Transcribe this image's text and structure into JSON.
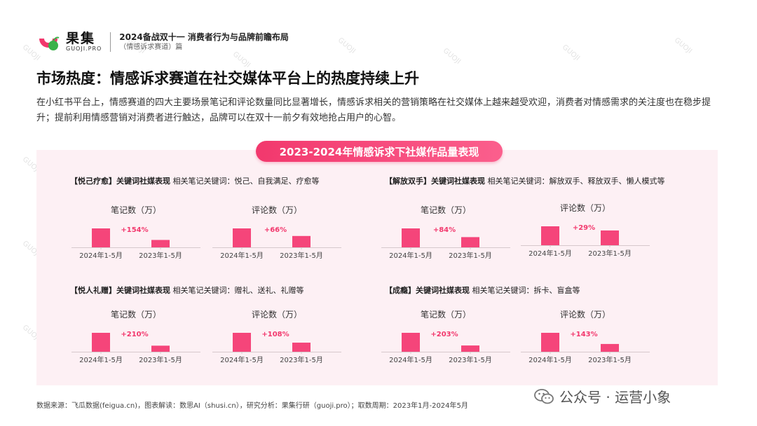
{
  "header": {
    "logo_cn": "果集",
    "logo_en": "GUOJI.PRO",
    "title": "2024备战双十一 消费者行为与品牌前瞻布局",
    "subtitle": "（情感诉求赛道）篇"
  },
  "page_title": "市场热度：情感诉求赛道在社交媒体平台上的热度持续上升",
  "intro": "在小红书平台上，情感赛道的四大主要场景笔记和评论数量同比显著增长，情感诉求相关的营销策略在社交媒体上越来越受欢迎，消费者对情感需求的关注度也在稳步提升；提前利用情感营销对消费者进行触达，品牌可以在双十一前夕有效地抢占用户的心智。",
  "banner": "2023-2024年情感诉求下社媒作品量表现",
  "colors": {
    "accent": "#f2386d",
    "bar": "#f5457a",
    "panel": "#fdf0f4"
  },
  "sections": [
    {
      "tag": "【悦己疗愈】关键词社媒表现",
      "keywords": "相关笔记关键词：悦己、自我满足、疗愈等"
    },
    {
      "tag": "【解放双手】关键词社媒表现",
      "keywords": "相关笔记关键词：解放双手、释放双手、懒人模式等"
    },
    {
      "tag": "【悦人礼赠】关键词社媒表现",
      "keywords": "相关笔记关键词：赠礼、送礼、礼赠等"
    },
    {
      "tag": "【成瘾】关键词社媒表现",
      "keywords": "相关笔记关键词：拆卡、盲盒等"
    }
  ],
  "chart_data": [
    {
      "type": "bar",
      "title": "笔记数（万）",
      "categories": [
        "2024年1-5月",
        "2023年1-5月"
      ],
      "values": [
        100,
        39
      ],
      "annotation": "+154%"
    },
    {
      "type": "bar",
      "title": "评论数（万）",
      "categories": [
        "2024年1-5月",
        "2023年1-5月"
      ],
      "values": [
        100,
        60
      ],
      "annotation": "+66%"
    },
    {
      "type": "bar",
      "title": "笔记数（万）",
      "categories": [
        "2024年1-5月",
        "2023年1-5月"
      ],
      "values": [
        100,
        54
      ],
      "annotation": "+84%"
    },
    {
      "type": "bar",
      "title": "评论数（万）",
      "categories": [
        "2024年1-5月",
        "2023年1-5月"
      ],
      "values": [
        100,
        78
      ],
      "annotation": "+29%"
    },
    {
      "type": "bar",
      "title": "笔记数（万）",
      "categories": [
        "2024年1-5月",
        "2023年1-5月"
      ],
      "values": [
        100,
        32
      ],
      "annotation": "+210%"
    },
    {
      "type": "bar",
      "title": "评论数（万）",
      "categories": [
        "2024年1-5月",
        "2023年1-5月"
      ],
      "values": [
        100,
        48
      ],
      "annotation": "+108%"
    },
    {
      "type": "bar",
      "title": "笔记数（万）",
      "categories": [
        "2024年1-5月",
        "2023年1-5月"
      ],
      "values": [
        100,
        33
      ],
      "annotation": "+203%"
    },
    {
      "type": "bar",
      "title": "评论数（万）",
      "categories": [
        "2024年1-5月",
        "2023年1-5月"
      ],
      "values": [
        100,
        41
      ],
      "annotation": "+143%"
    }
  ],
  "footer": "数据来源：飞瓜数据(feigua.cn)，图表解读：数思AI（shusi.cn），研究分析：果集行研（guoji.pro）；取数周期：2023年1月-2024年5月",
  "wechat": "公众号 · 运营小象"
}
